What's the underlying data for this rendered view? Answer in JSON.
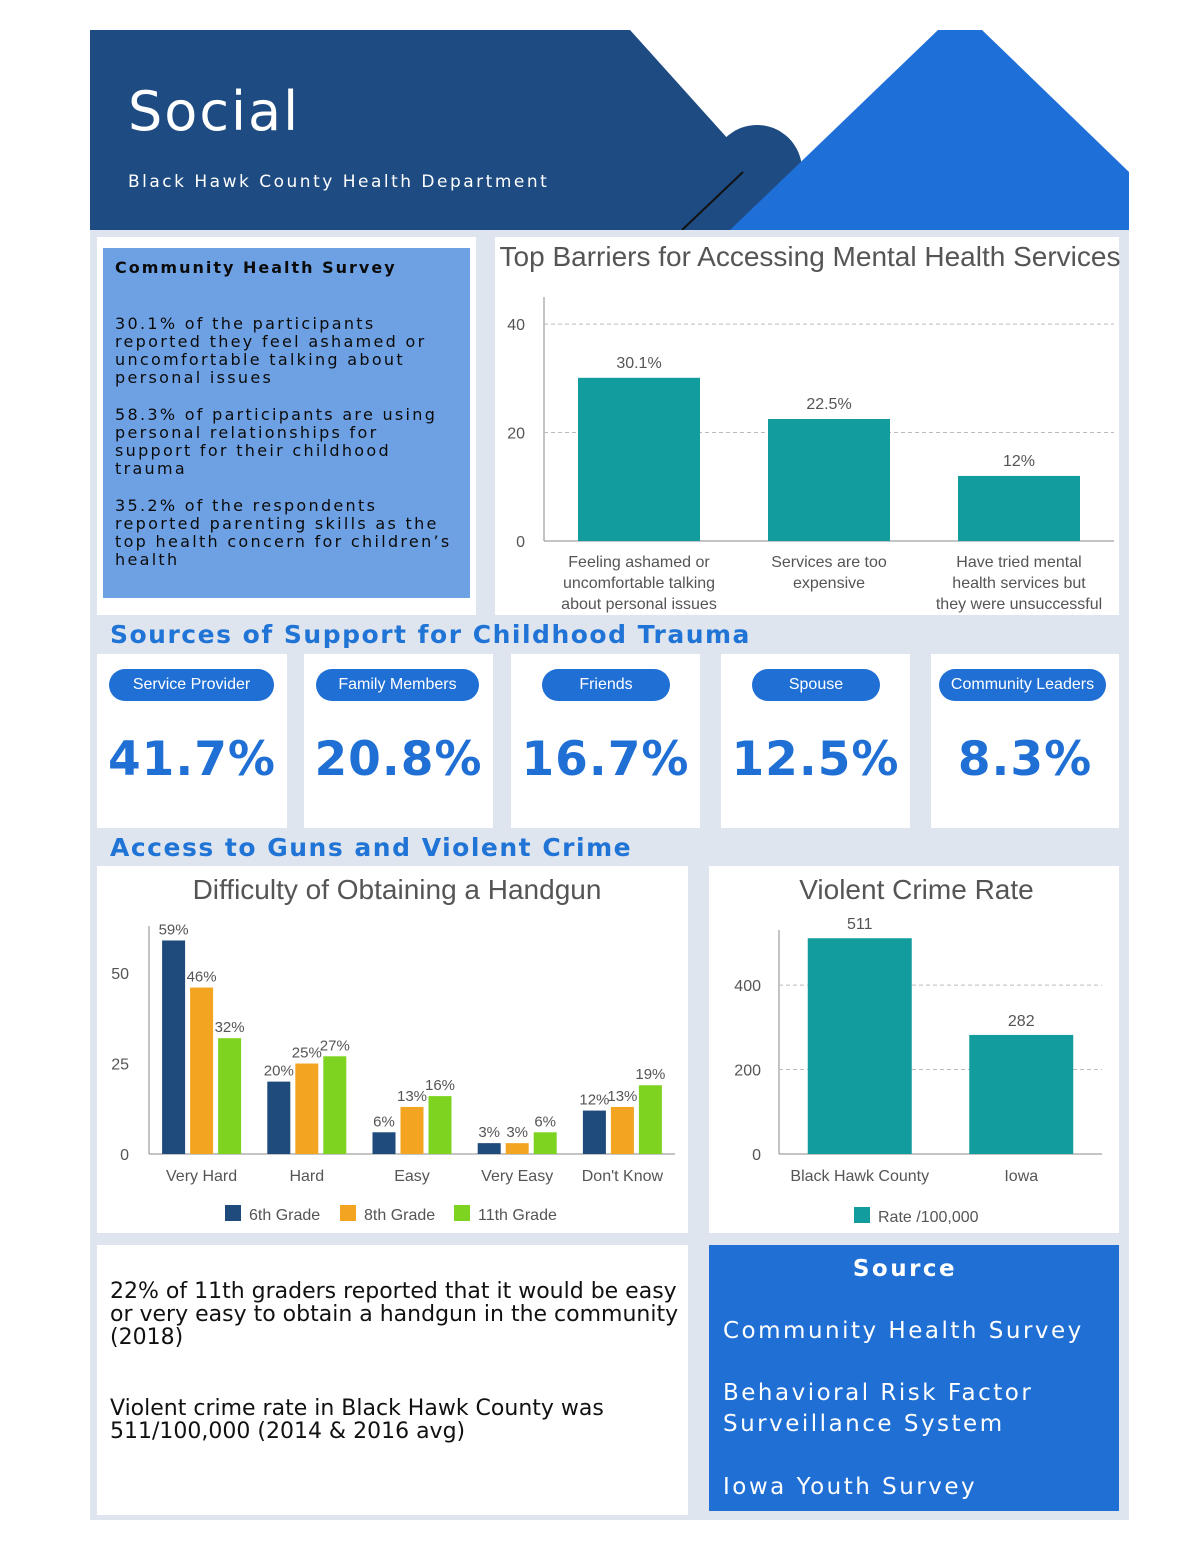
{
  "header": {
    "title": "Social",
    "subtitle": "Black Hawk County Health Department"
  },
  "survey": {
    "title": "Community Health Survey",
    "paragraphs": [
      "30.1% of the participants reported they feel ashamed or uncomfortable talking about personal issues",
      "58.3% of participants are using personal relationships for support for their childhood trauma",
      "35.2% of the respondents reported parenting skills as the top health concern for children’s health"
    ]
  },
  "sections": {
    "support": "Sources of Support for Childhood Trauma",
    "guns": "Access to Guns and Violent Crime"
  },
  "support_cards": [
    {
      "label": "Service Provider",
      "value": "41.7%"
    },
    {
      "label": "Family Members",
      "value": "20.8%"
    },
    {
      "label": "Friends",
      "value": "16.7%"
    },
    {
      "label": "Spouse",
      "value": "12.5%"
    },
    {
      "label": "Community Leaders",
      "value": "8.3%"
    }
  ],
  "notes": {
    "handgun": "22% of 11th graders reported that it would be easy or very easy to obtain a handgun in the community (2018)",
    "crime": "Violent crime rate in Black Hawk County was 511/100,000 (2014 & 2016 avg)"
  },
  "source": {
    "title": "Source",
    "items": [
      "Community Health Survey",
      "Behavioral Risk Factor Surveillance System",
      "Iowa Youth Survey"
    ]
  },
  "colors": {
    "header_dark": "#1d4b82",
    "header_light": "#1e6fd8",
    "accent": "#1f6fd4",
    "teal": "#139c9e",
    "grade6": "#1e4a7c",
    "grade8": "#f3a521",
    "grade11": "#7ed321"
  },
  "chart_data": [
    {
      "type": "bar",
      "title": "Top Barriers for Accessing Mental Health Services",
      "categories": [
        "Feeling ashamed or uncomfortable talking about personal issues",
        "Services are too expensive",
        "Have tried mental health services but they were unsuccessful"
      ],
      "values": [
        30.1,
        22.5,
        12
      ],
      "data_labels": [
        "30.1%",
        "22.5%",
        "12%"
      ],
      "yticks": [
        "0",
        "20",
        "40"
      ],
      "ylim": [
        0,
        45
      ],
      "grid": true
    },
    {
      "type": "bar",
      "title": "Difficulty of Obtaining a Handgun",
      "categories": [
        "Very Hard",
        "Hard",
        "Easy",
        "Very Easy",
        "Don't Know"
      ],
      "series": [
        {
          "name": "6th Grade",
          "values": [
            59,
            20,
            6,
            3,
            12
          ],
          "labels": [
            "59%",
            "20%",
            "6%",
            "3%",
            "12%"
          ]
        },
        {
          "name": "8th Grade",
          "values": [
            46,
            25,
            13,
            3,
            13
          ],
          "labels": [
            "46%",
            "25%",
            "13%",
            "3%",
            "13%"
          ]
        },
        {
          "name": "11th Grade",
          "values": [
            32,
            27,
            16,
            6,
            19
          ],
          "labels": [
            "32%",
            "27%",
            "16%",
            "6%",
            "19%"
          ]
        }
      ],
      "yticks": [
        "0",
        "25",
        "50"
      ],
      "ylim": [
        0,
        63
      ],
      "legend": "bottom",
      "grid": false
    },
    {
      "type": "bar",
      "title": "Violent Crime Rate",
      "categories": [
        "Black Hawk County",
        "Iowa"
      ],
      "series": [
        {
          "name": "Rate /100,000",
          "values": [
            511,
            282
          ],
          "labels": [
            "511",
            "282"
          ]
        }
      ],
      "yticks": [
        "0",
        "200",
        "400"
      ],
      "ylim": [
        0,
        540
      ],
      "legend": "bottom",
      "grid": true
    }
  ]
}
